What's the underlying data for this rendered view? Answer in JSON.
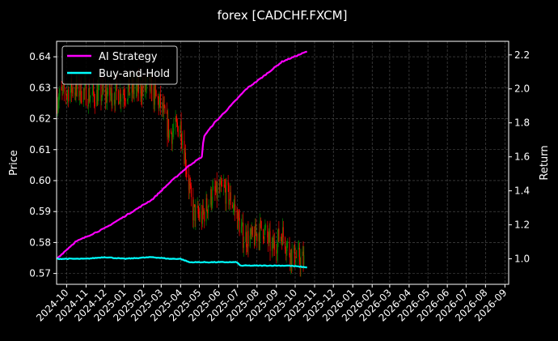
{
  "chart_data": {
    "type": "line",
    "title": "forex [CADCHF.FXCM]",
    "ylabel": "Price",
    "y2label": "Return",
    "ylim": [
      0.5665,
      0.645
    ],
    "y2lim": [
      0.85,
      2.28
    ],
    "xlim": [
      "2024-09-15",
      "2026-09-07"
    ],
    "yticks": [
      "0.57",
      "0.58",
      "0.59",
      "0.60",
      "0.61",
      "0.62",
      "0.63",
      "0.64"
    ],
    "y2ticks": [
      "1.0",
      "1.2",
      "1.4",
      "1.6",
      "1.8",
      "2.0",
      "2.2"
    ],
    "xticks": [
      "2024-10",
      "2024-11",
      "2024-12",
      "2025-01",
      "2025-02",
      "2025-03",
      "2025-04",
      "2025-05",
      "2025-06",
      "2025-07",
      "2025-08",
      "2025-09",
      "2025-10",
      "2025-11",
      "2025-12",
      "2026-01",
      "2026-02",
      "2026-03",
      "2026-04",
      "2026-05",
      "2026-06",
      "2026-07",
      "2026-08",
      "2026-09"
    ],
    "grid": true,
    "legend_position": "top-left",
    "colors": {
      "up": "#008000",
      "down": "#ff0000",
      "ai": "#ff00ff",
      "bh": "#00ffff"
    },
    "price_keypoints": [
      {
        "x": "2024-09-15",
        "y": 0.6265
      },
      {
        "x": "2024-10-10",
        "y": 0.63
      },
      {
        "x": "2024-11-10",
        "y": 0.6275
      },
      {
        "x": "2024-12-10",
        "y": 0.628
      },
      {
        "x": "2025-01-10",
        "y": 0.629
      },
      {
        "x": "2025-02-10",
        "y": 0.63
      },
      {
        "x": "2025-03-01",
        "y": 0.624
      },
      {
        "x": "2025-03-15",
        "y": 0.615
      },
      {
        "x": "2025-04-01",
        "y": 0.618
      },
      {
        "x": "2025-04-10",
        "y": 0.605
      },
      {
        "x": "2025-04-20",
        "y": 0.59
      },
      {
        "x": "2025-05-05",
        "y": 0.588
      },
      {
        "x": "2025-05-20",
        "y": 0.595
      },
      {
        "x": "2025-06-10",
        "y": 0.597
      },
      {
        "x": "2025-06-25",
        "y": 0.592
      },
      {
        "x": "2025-07-10",
        "y": 0.582
      },
      {
        "x": "2025-07-25",
        "y": 0.581
      },
      {
        "x": "2025-08-10",
        "y": 0.585
      },
      {
        "x": "2025-08-25",
        "y": 0.578
      },
      {
        "x": "2025-09-10",
        "y": 0.583
      },
      {
        "x": "2025-09-25",
        "y": 0.576
      },
      {
        "x": "2025-10-15",
        "y": 0.574
      }
    ],
    "series": [
      {
        "name": "AI Strategy",
        "points": [
          {
            "x": "2024-09-15",
            "y": 1.0
          },
          {
            "x": "2024-10-15",
            "y": 1.1
          },
          {
            "x": "2024-12-01",
            "y": 1.18
          },
          {
            "x": "2025-01-15",
            "y": 1.28
          },
          {
            "x": "2025-02-15",
            "y": 1.35
          },
          {
            "x": "2025-03-15",
            "y": 1.45
          },
          {
            "x": "2025-04-15",
            "y": 1.55
          },
          {
            "x": "2025-05-05",
            "y": 1.6
          },
          {
            "x": "2025-05-08",
            "y": 1.72
          },
          {
            "x": "2025-05-25",
            "y": 1.8
          },
          {
            "x": "2025-06-15",
            "y": 1.88
          },
          {
            "x": "2025-07-15",
            "y": 2.0
          },
          {
            "x": "2025-08-10",
            "y": 2.07
          },
          {
            "x": "2025-09-10",
            "y": 2.16
          },
          {
            "x": "2025-10-20",
            "y": 2.22
          }
        ]
      },
      {
        "name": "Buy-and-Hold",
        "points": [
          {
            "x": "2024-09-15",
            "y": 1.0
          },
          {
            "x": "2024-11-01",
            "y": 1.0
          },
          {
            "x": "2024-12-01",
            "y": 1.01
          },
          {
            "x": "2025-01-01",
            "y": 1.0
          },
          {
            "x": "2025-02-15",
            "y": 1.01
          },
          {
            "x": "2025-03-15",
            "y": 1.0
          },
          {
            "x": "2025-04-01",
            "y": 1.0
          },
          {
            "x": "2025-04-15",
            "y": 0.98
          },
          {
            "x": "2025-05-20",
            "y": 0.98
          },
          {
            "x": "2025-06-30",
            "y": 0.98
          },
          {
            "x": "2025-07-05",
            "y": 0.96
          },
          {
            "x": "2025-08-15",
            "y": 0.96
          },
          {
            "x": "2025-09-20",
            "y": 0.96
          },
          {
            "x": "2025-10-20",
            "y": 0.95
          }
        ]
      }
    ]
  }
}
